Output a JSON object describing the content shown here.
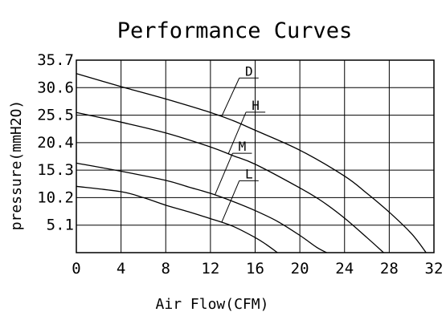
{
  "chart_data": {
    "type": "line",
    "title": "Performance Curves",
    "xlabel": "Air Flow(CFM)",
    "ylabel": "pressure(mmH2O)",
    "xlim": [
      0,
      32
    ],
    "ylim": [
      0,
      35.7
    ],
    "x_ticks": [
      "0",
      "4",
      "8",
      "12",
      "16",
      "20",
      "24",
      "28",
      "32"
    ],
    "y_ticks": [
      "5.1",
      "10.2",
      "15.3",
      "20.4",
      "25.5",
      "30.6",
      "35.7"
    ],
    "grid": true,
    "series": [
      {
        "name": "D",
        "x": [
          0,
          4,
          8,
          12,
          14,
          16,
          20,
          24,
          26,
          28,
          30,
          31.3
        ],
        "y": [
          33.2,
          30.8,
          28.5,
          26.0,
          24.5,
          22.7,
          19.0,
          14.2,
          11.0,
          7.5,
          3.5,
          0
        ]
      },
      {
        "name": "H",
        "x": [
          0,
          4,
          8,
          12,
          14,
          16,
          20,
          22,
          24,
          26,
          27.5
        ],
        "y": [
          26.0,
          24.2,
          22.2,
          19.6,
          18.0,
          16.4,
          12.0,
          9.5,
          6.4,
          2.8,
          0
        ]
      },
      {
        "name": "M",
        "x": [
          0,
          4,
          8,
          10,
          12,
          14,
          16,
          18,
          20,
          21.5,
          22.4
        ],
        "y": [
          16.6,
          15.1,
          13.4,
          12.2,
          11.0,
          9.5,
          7.8,
          5.8,
          3.2,
          1.0,
          0
        ]
      },
      {
        "name": "L",
        "x": [
          0,
          4,
          6,
          8,
          10,
          12,
          14,
          16,
          17,
          18
        ],
        "y": [
          12.3,
          11.3,
          10.2,
          8.8,
          7.6,
          6.3,
          4.9,
          2.8,
          1.5,
          0
        ]
      }
    ],
    "annotations": [
      "D",
      "H",
      "M",
      "L"
    ]
  }
}
